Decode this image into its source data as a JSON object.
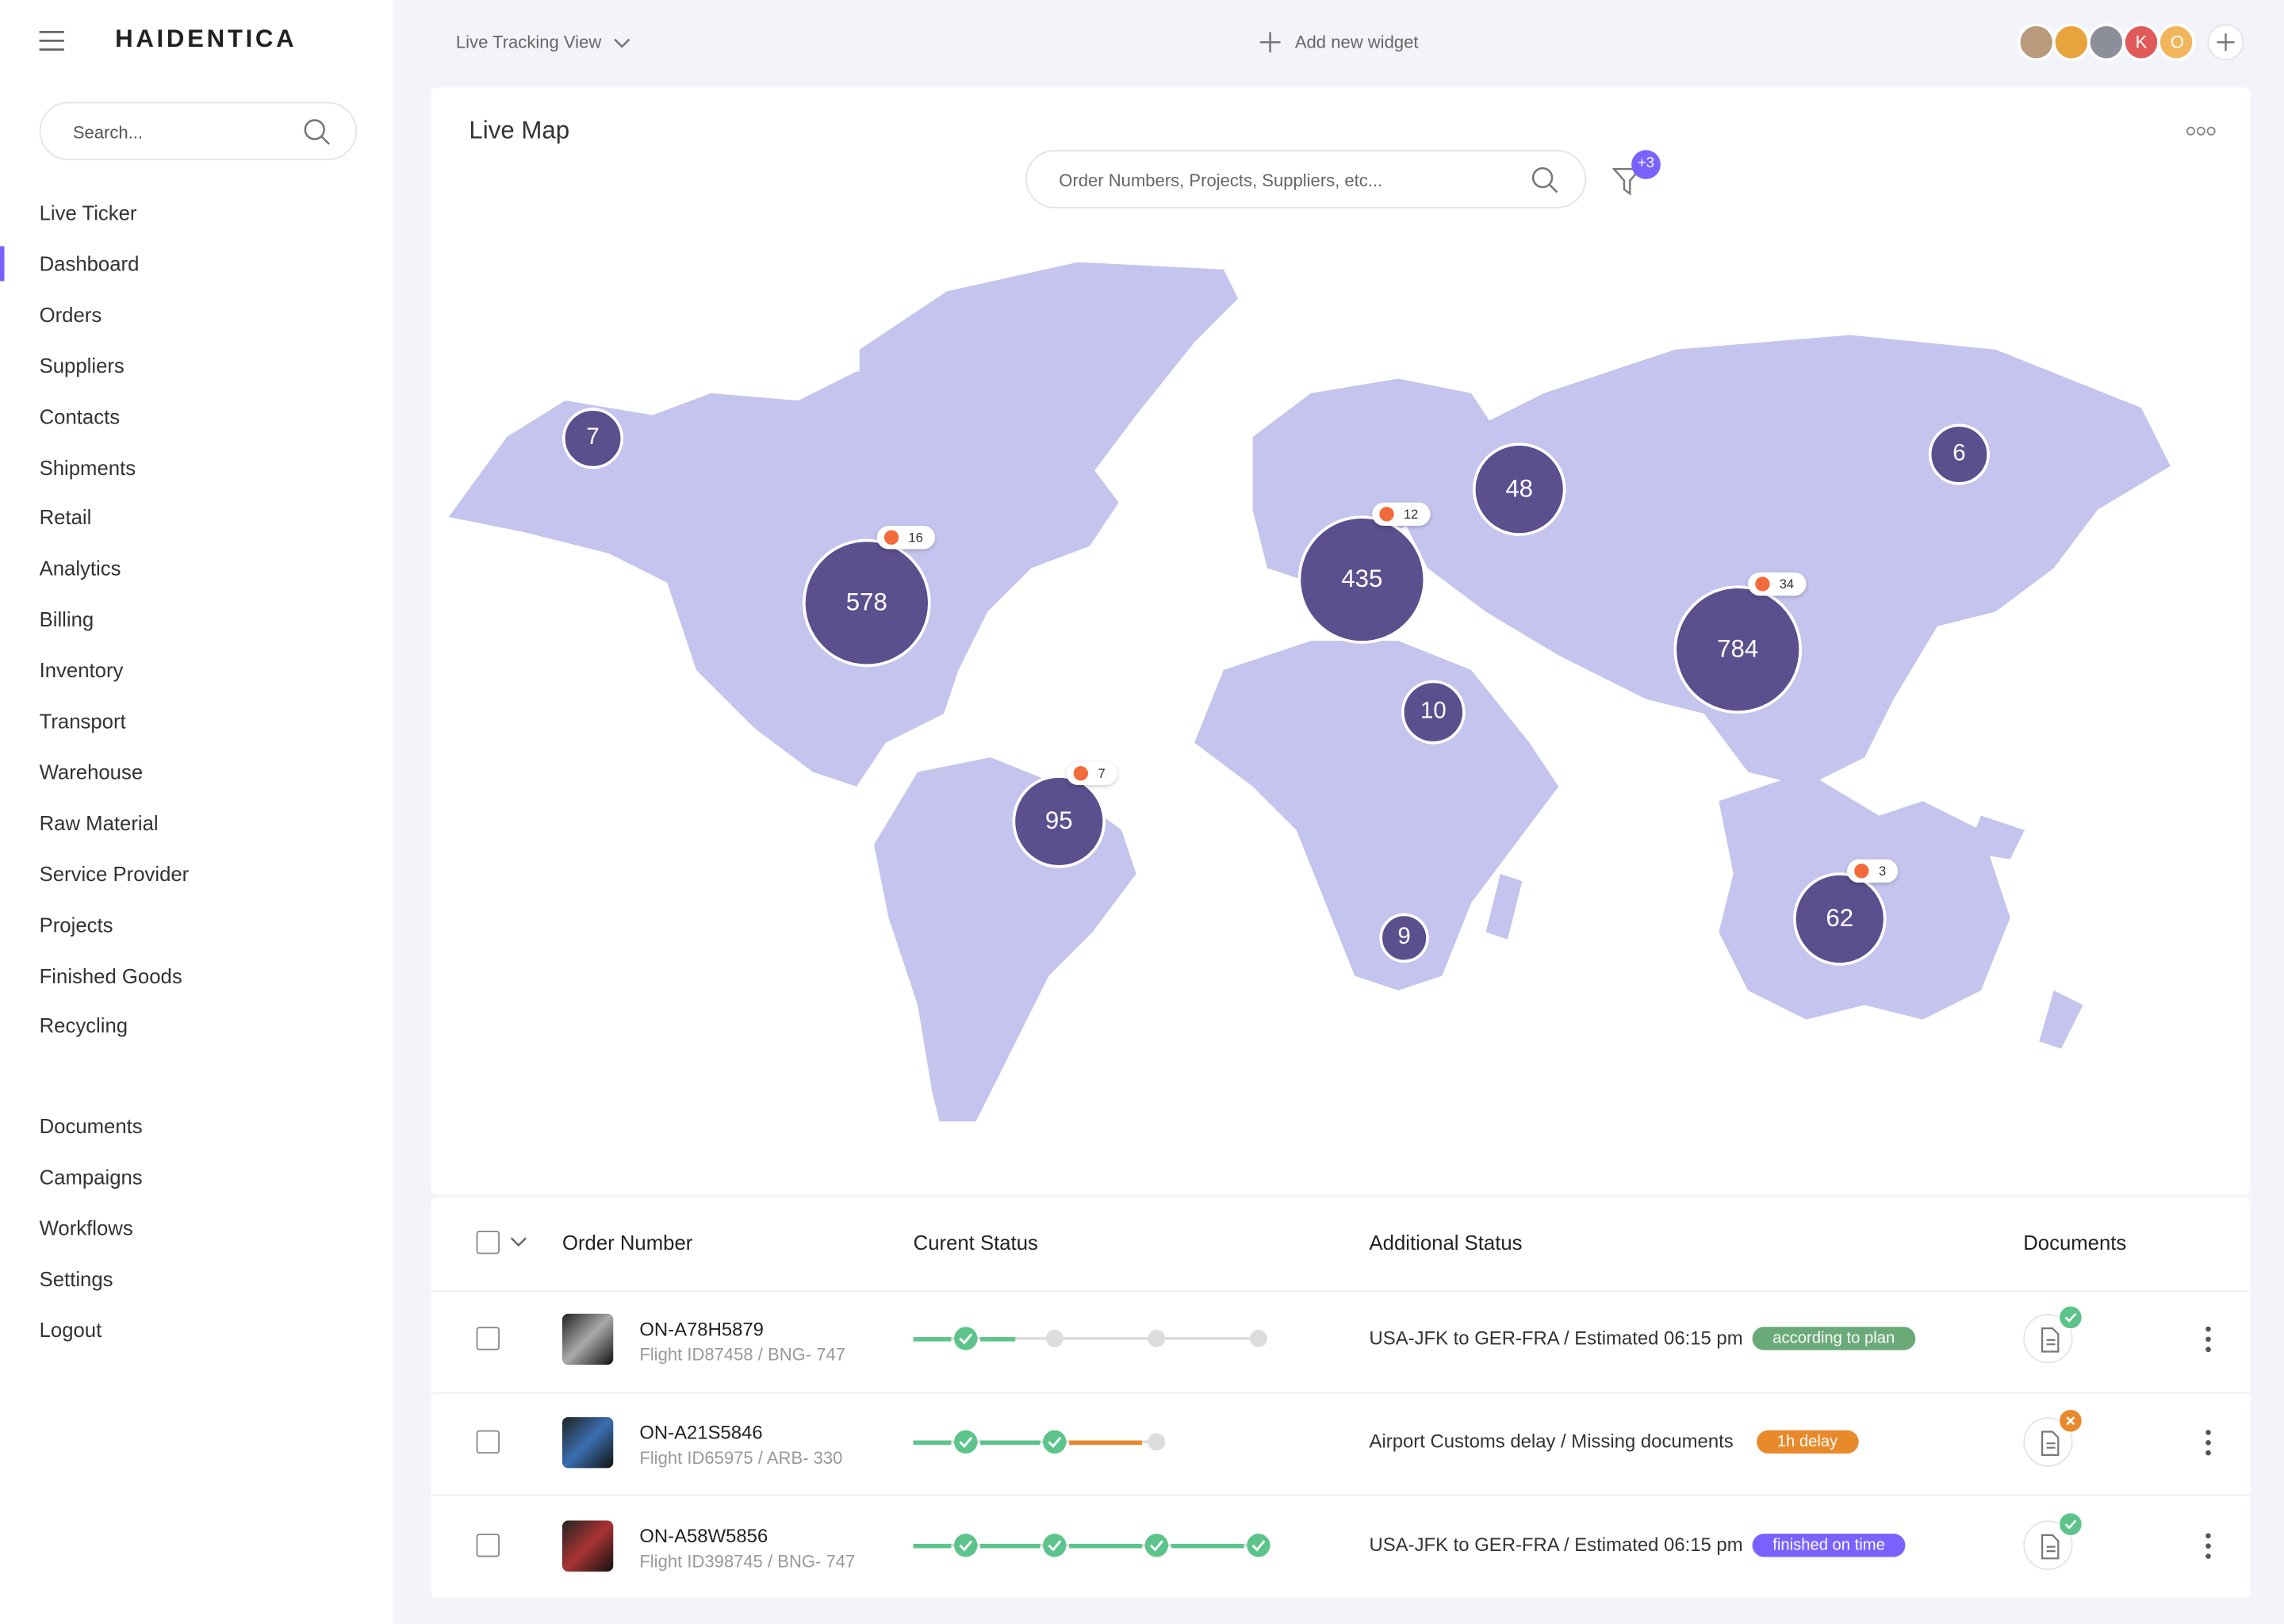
{
  "brand": "HAIDENTICA",
  "sidebar": {
    "search_placeholder": "Search...",
    "nav": [
      "Live Ticker",
      "Dashboard",
      "Orders",
      "Suppliers",
      "Contacts",
      "Shipments",
      "Retail",
      "Analytics",
      "Billing",
      "Inventory",
      "Transport",
      "Warehouse",
      "Raw Material",
      "Service Provider",
      "Projects",
      "Finished Goods",
      "Recycling"
    ],
    "nav_secondary": [
      "Documents",
      "Campaigns",
      "Workflows",
      "Settings",
      "Logout"
    ]
  },
  "topbar": {
    "view": "Live Tracking View",
    "add_widget": "Add new widget",
    "avatars": [
      "K",
      "O"
    ]
  },
  "map": {
    "title": "Live Map",
    "search_placeholder": "Order Numbers, Projects, Suppliers, etc...",
    "filter_badge": "+3",
    "clusters": [
      {
        "count": "7"
      },
      {
        "count": "578",
        "alerts": "16"
      },
      {
        "count": "435",
        "alerts": "12"
      },
      {
        "count": "48"
      },
      {
        "count": "6"
      },
      {
        "count": "784",
        "alerts": "34"
      },
      {
        "count": "10"
      },
      {
        "count": "95",
        "alerts": "7"
      },
      {
        "count": "9"
      },
      {
        "count": "62",
        "alerts": "3"
      }
    ]
  },
  "table": {
    "headers": [
      "Order Number",
      "Curent Status",
      "Additional Status",
      "Documents"
    ],
    "rows": [
      {
        "order": "ON-A78H5879",
        "flight": "Flight ID87458 / BNG- 747",
        "status": "USA-JFK to GER-FRA / Estimated 06:15 pm",
        "badge": "according to plan"
      },
      {
        "order": "ON-A21S5846",
        "flight": "Flight ID65975 / ARB- 330",
        "status": "Airport Customs delay / Missing documents",
        "badge": "1h delay"
      },
      {
        "order": "ON-A58W5856",
        "flight": "Flight ID398745 / BNG- 747",
        "status": "USA-JFK to GER-FRA / Estimated 06:15 pm",
        "badge": "finished on time"
      }
    ]
  }
}
